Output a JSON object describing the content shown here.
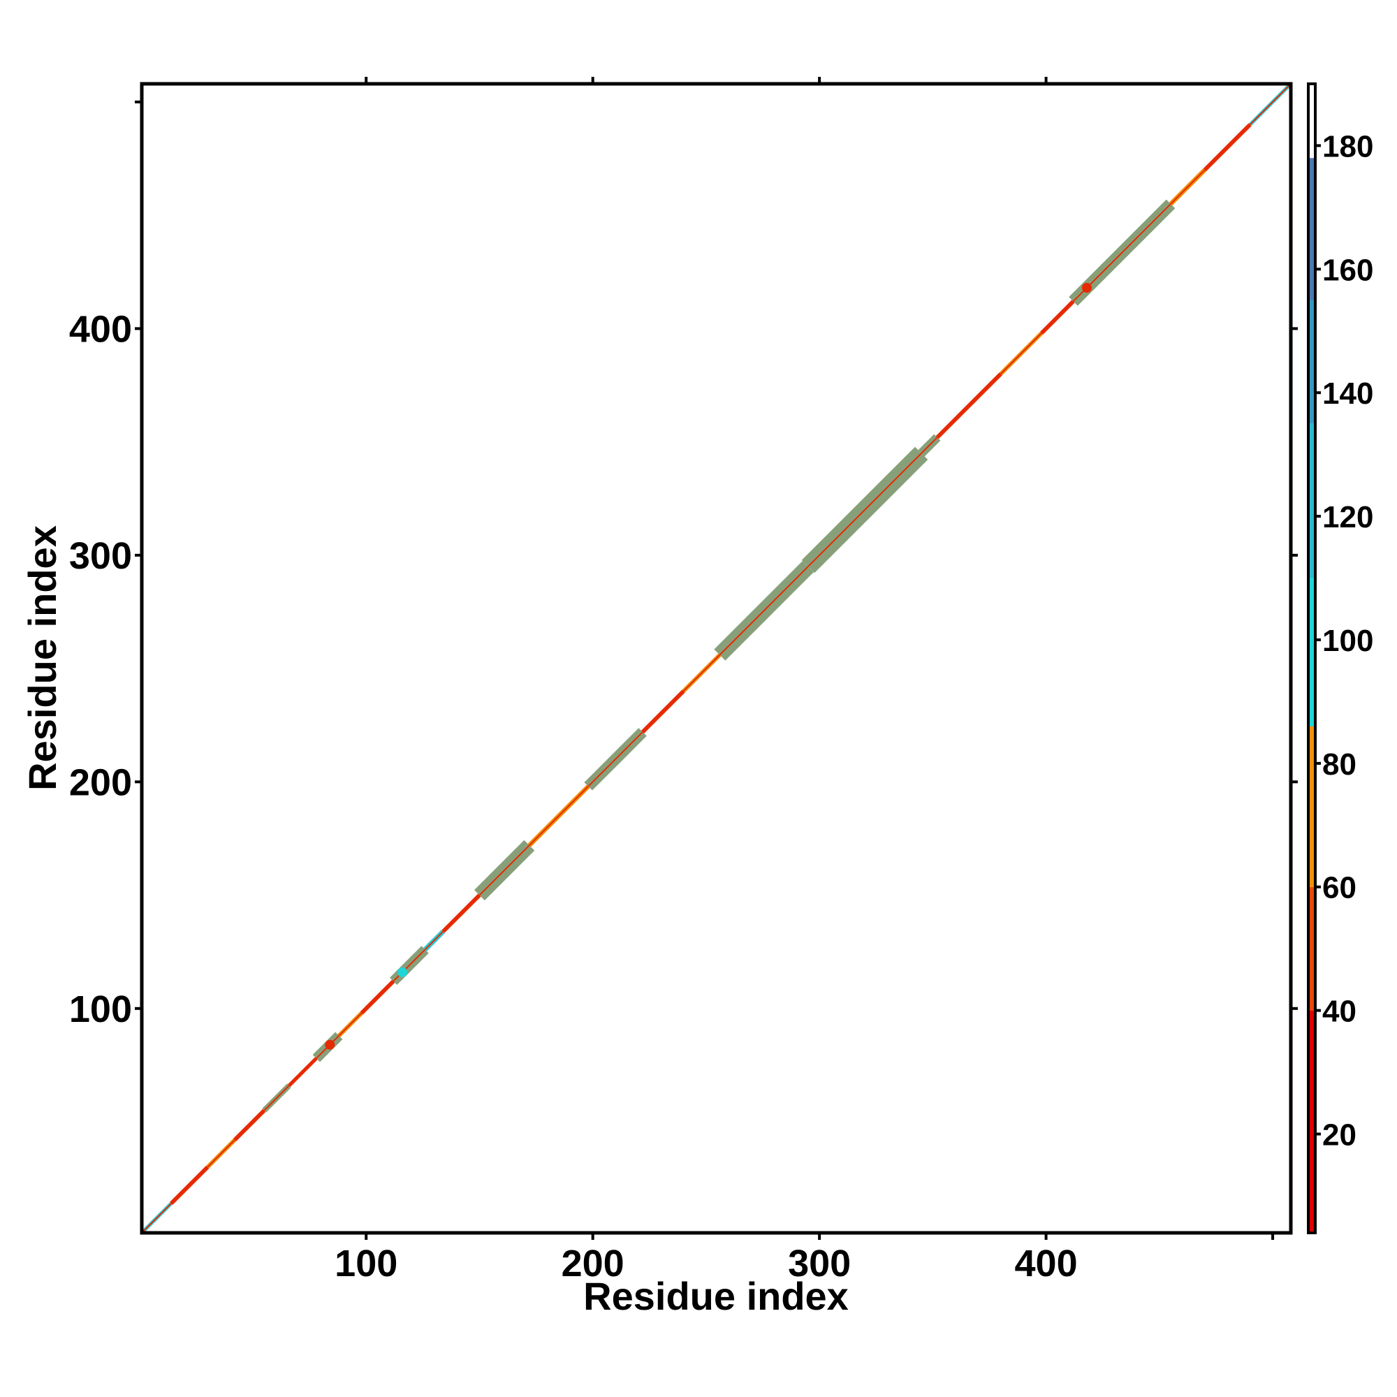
{
  "chart_data": {
    "type": "heatmap",
    "title": "",
    "xlabel": "Residue index",
    "ylabel": "Residue index",
    "xlim": [
      1,
      508
    ],
    "ylim": [
      1,
      508
    ],
    "x_ticks": [
      100,
      200,
      300,
      400
    ],
    "y_ticks": [
      100,
      200,
      300,
      400
    ],
    "grid": false,
    "colorbar": {
      "range": [
        4,
        190
      ],
      "ticks": [
        20,
        40,
        60,
        80,
        100,
        120,
        140,
        160,
        180
      ],
      "bands": [
        {
          "from": 4,
          "to": 40,
          "color": "#e00000"
        },
        {
          "from": 40,
          "to": 60,
          "color": "#e8490a"
        },
        {
          "from": 60,
          "to": 86,
          "color": "#f0900a"
        },
        {
          "from": 86,
          "to": 110,
          "color": "#1ed6d6"
        },
        {
          "from": 110,
          "to": 135,
          "color": "#2cb8cc"
        },
        {
          "from": 135,
          "to": 155,
          "color": "#3399c2"
        },
        {
          "from": 155,
          "to": 178,
          "color": "#4d78b0"
        },
        {
          "from": 178,
          "to": 190,
          "color": "#ffffff"
        }
      ]
    },
    "diagonal_segments": [
      {
        "from": 1,
        "to": 14,
        "color": "#2ec9d6",
        "width": 1.6
      },
      {
        "from": 14,
        "to": 30,
        "color": "#e62a00",
        "width": 1.8
      },
      {
        "from": 30,
        "to": 42,
        "color": "#f08c00",
        "width": 1.8
      },
      {
        "from": 42,
        "to": 55,
        "color": "#e62a00",
        "width": 1.8
      },
      {
        "from": 55,
        "to": 66,
        "color": "#88a07a",
        "width": 2.5
      },
      {
        "from": 66,
        "to": 78,
        "color": "#e62a00",
        "width": 1.6
      },
      {
        "from": 78,
        "to": 88,
        "color": "#88a07a",
        "width": 4.5
      },
      {
        "from": 88,
        "to": 98,
        "color": "#f08c00",
        "width": 1.8
      },
      {
        "from": 98,
        "to": 112,
        "color": "#e62a00",
        "width": 1.8
      },
      {
        "from": 112,
        "to": 126,
        "color": "#88a07a",
        "width": 4.5
      },
      {
        "from": 126,
        "to": 134,
        "color": "#2ec9d6",
        "width": 2.2
      },
      {
        "from": 134,
        "to": 150,
        "color": "#e62a00",
        "width": 1.8
      },
      {
        "from": 150,
        "to": 172,
        "color": "#88a07a",
        "width": 6.5
      },
      {
        "from": 172,
        "to": 198,
        "color": "#f08c00",
        "width": 2.0
      },
      {
        "from": 198,
        "to": 222,
        "color": "#88a07a",
        "width": 5.0
      },
      {
        "from": 222,
        "to": 240,
        "color": "#e62a00",
        "width": 1.8
      },
      {
        "from": 240,
        "to": 256,
        "color": "#f08c00",
        "width": 1.8
      },
      {
        "from": 256,
        "to": 295,
        "color": "#88a07a",
        "width": 7.0
      },
      {
        "from": 295,
        "to": 345,
        "color": "#88a07a",
        "width": 8.0
      },
      {
        "from": 345,
        "to": 352,
        "color": "#88a07a",
        "width": 4.0
      },
      {
        "from": 352,
        "to": 380,
        "color": "#e62a00",
        "width": 1.8
      },
      {
        "from": 380,
        "to": 398,
        "color": "#f08c00",
        "width": 1.8
      },
      {
        "from": 398,
        "to": 412,
        "color": "#e62a00",
        "width": 1.8
      },
      {
        "from": 412,
        "to": 455,
        "color": "#88a07a",
        "width": 5.5
      },
      {
        "from": 455,
        "to": 470,
        "color": "#f08c00",
        "width": 2.0
      },
      {
        "from": 470,
        "to": 490,
        "color": "#e62a00",
        "width": 1.8
      },
      {
        "from": 490,
        "to": 508,
        "color": "#2ec9d6",
        "width": 1.6
      }
    ],
    "highlight_points": [
      {
        "x": 116,
        "y": 116,
        "color": "#1ed6d6"
      },
      {
        "x": 84,
        "y": 84,
        "color": "#e62a00"
      },
      {
        "x": 418,
        "y": 418,
        "color": "#e62a00"
      }
    ]
  }
}
